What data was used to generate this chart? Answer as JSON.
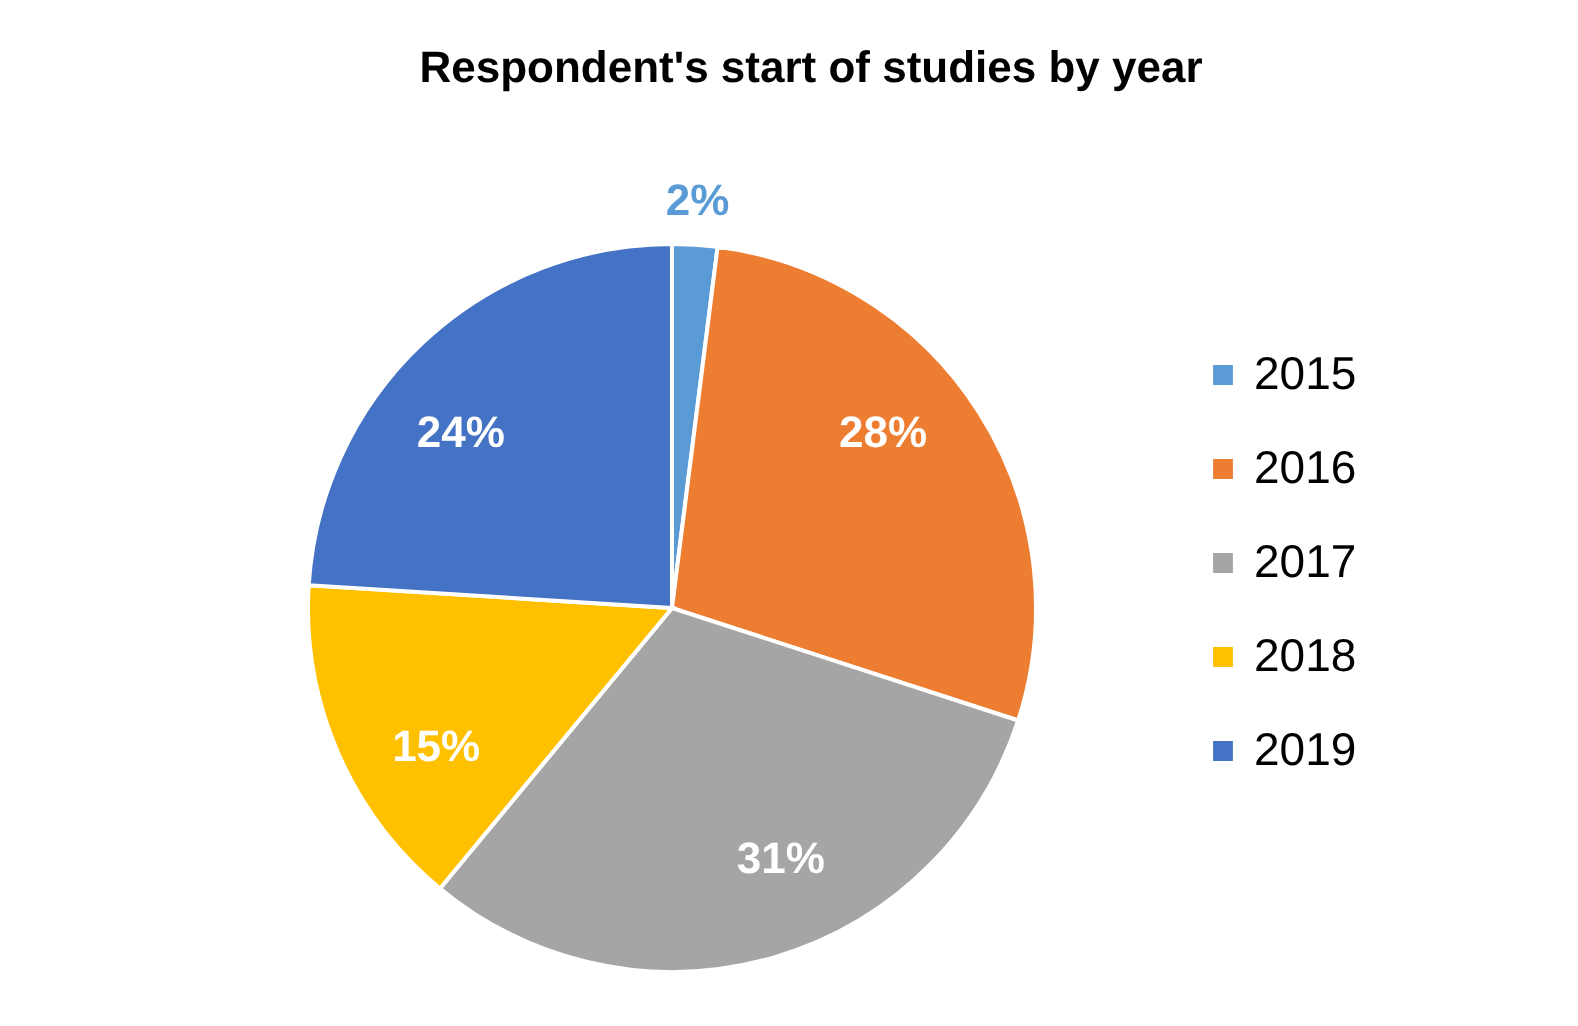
{
  "chart_data": {
    "type": "pie",
    "title": "Respondent's start of studies by year",
    "categories": [
      "2015",
      "2016",
      "2017",
      "2018",
      "2019"
    ],
    "values": [
      2,
      28,
      31,
      15,
      24
    ],
    "colors": [
      "#5b9bd5",
      "#ed7d31",
      "#a5a5a5",
      "#ffc000",
      "#4472c4"
    ],
    "value_labels": [
      "2%",
      "28%",
      "31%",
      "15%",
      "24%"
    ],
    "legend": "right"
  }
}
